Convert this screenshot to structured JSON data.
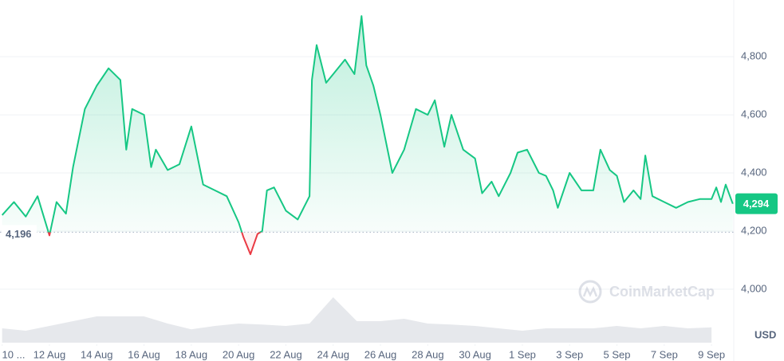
{
  "chart_data": {
    "type": "line",
    "x": [
      0,
      0.5,
      1,
      1.5,
      2,
      2.3,
      2.7,
      3,
      3.5,
      4,
      4.5,
      5,
      5.25,
      5.5,
      6,
      6.3,
      6.5,
      7,
      7.5,
      8,
      8.5,
      9,
      9.5,
      10,
      10.2,
      10.5,
      10.8,
      11,
      11.2,
      11.5,
      12,
      12.5,
      13,
      13.1,
      13.3,
      13.7,
      14,
      14.5,
      14.9,
      15.2,
      15.4,
      15.7,
      16,
      16.5,
      17,
      17.5,
      18,
      18.3,
      18.7,
      19,
      19.5,
      20,
      20.3,
      20.7,
      21,
      21.5,
      21.8,
      22.2,
      22.7,
      23,
      23.3,
      23.5,
      24,
      24.5,
      25,
      25.3,
      25.7,
      26,
      26.3,
      26.7,
      27,
      27.2,
      27.5,
      28,
      28.5,
      29,
      29.5,
      30,
      30.2,
      30.4,
      30.6,
      30.9
    ],
    "series": [
      {
        "name": "Price",
        "color": "#16c784",
        "below_color": "#ea3943",
        "values": [
          4255,
          4300,
          4250,
          4320,
          4185,
          4300,
          4260,
          4420,
          4620,
          4700,
          4760,
          4720,
          4480,
          4620,
          4600,
          4420,
          4480,
          4410,
          4430,
          4560,
          4360,
          4340,
          4320,
          4230,
          4180,
          4120,
          4190,
          4200,
          4340,
          4350,
          4270,
          4240,
          4320,
          4720,
          4840,
          4710,
          4740,
          4790,
          4740,
          4940,
          4770,
          4700,
          4600,
          4400,
          4480,
          4620,
          4600,
          4650,
          4490,
          4600,
          4480,
          4450,
          4330,
          4370,
          4320,
          4400,
          4470,
          4480,
          4400,
          4390,
          4340,
          4280,
          4400,
          4340,
          4340,
          4480,
          4410,
          4390,
          4300,
          4340,
          4310,
          4460,
          4320,
          4300,
          4280,
          4300,
          4310,
          4310,
          4350,
          4300,
          4360,
          4294
        ]
      }
    ],
    "volume": {
      "x": [
        0,
        1,
        2,
        3,
        4,
        5,
        6,
        7,
        8,
        9,
        10,
        11,
        12,
        13,
        14,
        15,
        16,
        17,
        18,
        19,
        20,
        21,
        22,
        23,
        24,
        25,
        26,
        27,
        28,
        29,
        30
      ],
      "values": [
        30,
        25,
        35,
        45,
        55,
        55,
        55,
        40,
        28,
        35,
        40,
        38,
        35,
        40,
        95,
        45,
        45,
        50,
        40,
        38,
        35,
        30,
        25,
        30,
        30,
        30,
        35,
        30,
        35,
        30,
        32
      ],
      "lim": [
        0,
        100
      ],
      "color": "#e6e8ec"
    },
    "xlim": [
      -0.09,
      30.94
    ],
    "xticks": [
      {
        "value": 0,
        "label": "10 ..."
      },
      {
        "value": 2,
        "label": "12 Aug"
      },
      {
        "value": 4,
        "label": "14 Aug"
      },
      {
        "value": 6,
        "label": "16 Aug"
      },
      {
        "value": 8,
        "label": "18 Aug"
      },
      {
        "value": 10,
        "label": "20 Aug"
      },
      {
        "value": 12,
        "label": "22 Aug"
      },
      {
        "value": 14,
        "label": "24 Aug"
      },
      {
        "value": 16,
        "label": "26 Aug"
      },
      {
        "value": 18,
        "label": "28 Aug"
      },
      {
        "value": 20,
        "label": "30 Aug"
      },
      {
        "value": 22,
        "label": "1 Sep"
      },
      {
        "value": 24,
        "label": "3 Sep"
      },
      {
        "value": 26,
        "label": "5 Sep"
      },
      {
        "value": 28,
        "label": "7 Sep"
      },
      {
        "value": 30,
        "label": "9 Sep"
      }
    ],
    "ylim": [
      3816,
      4995
    ],
    "yticks": [
      {
        "value": 4000,
        "label": "4,000"
      },
      {
        "value": 4200,
        "label": "4,200"
      },
      {
        "value": 4400,
        "label": "4,400"
      },
      {
        "value": 4600,
        "label": "4,600"
      },
      {
        "value": 4800,
        "label": "4,800"
      }
    ],
    "y_axis_label": "USD",
    "grid": true,
    "baseline": {
      "value": 4196,
      "label": "4,196"
    },
    "last_price": {
      "value": 4294,
      "label": "4,294"
    },
    "watermark": "CoinMarketCap"
  }
}
